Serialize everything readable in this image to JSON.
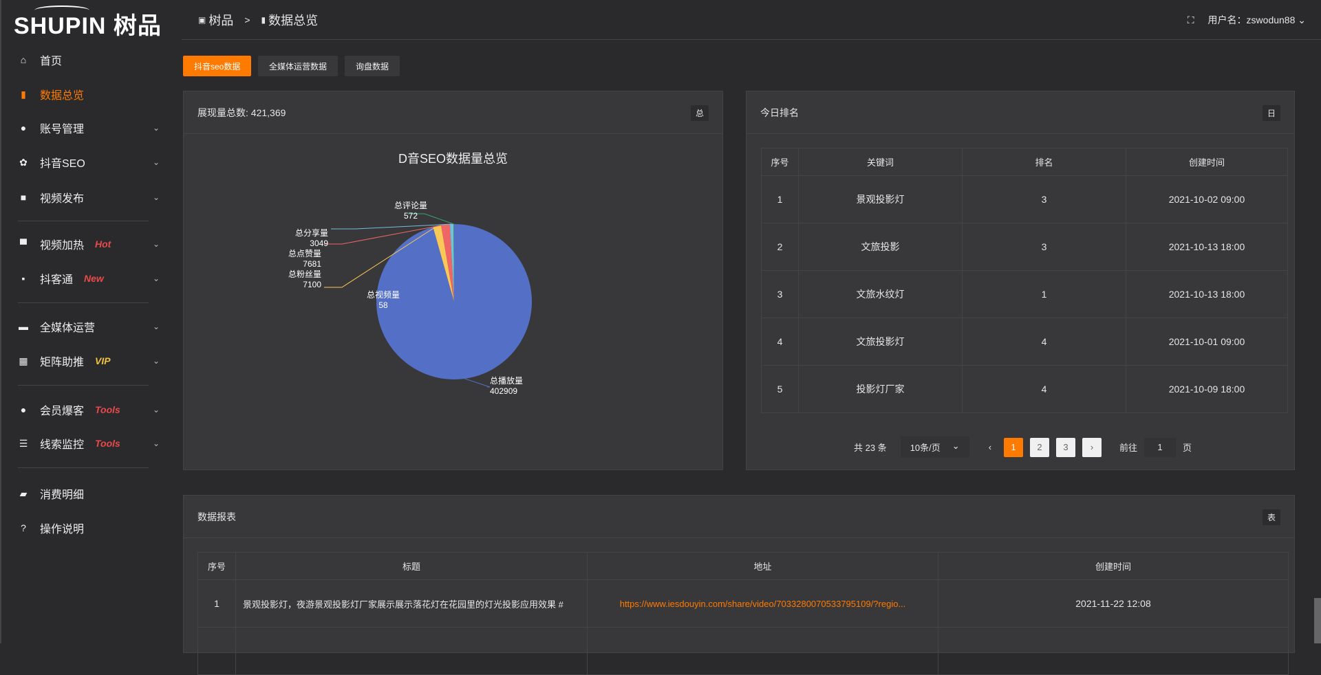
{
  "brand": {
    "logo_text": "SHUPIN 树品"
  },
  "colors": {
    "accent": "#ff7a00",
    "hot": "#e84a4a",
    "vip": "#f0c040"
  },
  "sidebar": {
    "items": [
      {
        "label": "首页",
        "icon": "home-icon",
        "glyph": "⌂"
      },
      {
        "label": "数据总览",
        "icon": "bar-chart-icon",
        "glyph": "▮",
        "active": true
      },
      {
        "label": "账号管理",
        "icon": "user-icon",
        "glyph": "●",
        "chev": true
      },
      {
        "label": "抖音SEO",
        "icon": "gear-icon",
        "glyph": "✿",
        "chev": true
      },
      {
        "label": "视频发布",
        "icon": "camera-icon",
        "glyph": "■",
        "chev": true
      },
      {
        "label": "视频加热",
        "icon": "monitor-icon",
        "glyph": "▀",
        "chev": true,
        "tag": "Hot"
      },
      {
        "label": "抖客通",
        "icon": "chat-icon",
        "glyph": "▪",
        "chev": true,
        "tag": "New"
      },
      {
        "label": "全媒体运营",
        "icon": "desktop-icon",
        "glyph": "▬",
        "chev": true
      },
      {
        "label": "矩阵助推",
        "icon": "grid-icon",
        "glyph": "▦",
        "chev": true,
        "tag": "VIP"
      },
      {
        "label": "会员爆客",
        "icon": "user-icon",
        "glyph": "●",
        "chev": true,
        "tag": "Tools"
      },
      {
        "label": "线索监控",
        "icon": "sliders-icon",
        "glyph": "☰",
        "chev": true,
        "tag": "Tools"
      },
      {
        "label": "消费明细",
        "icon": "wallet-icon",
        "glyph": "▰"
      },
      {
        "label": "操作说明",
        "icon": "help-icon",
        "glyph": "?"
      }
    ]
  },
  "header": {
    "breadcrumb": [
      "树品",
      "数据总览"
    ],
    "sep": ">",
    "user_label": "用户名：zswodun88"
  },
  "tabs": [
    "抖音seo数据",
    "全媒体运营数据",
    "询盘数据"
  ],
  "pie_card": {
    "title": "展现量总数: 421,369",
    "badge": "总"
  },
  "chart_data": {
    "type": "pie",
    "title": "D音SEO数据量总览",
    "slices": [
      {
        "name": "总播放量",
        "value": 402909,
        "color": "#5470c6"
      },
      {
        "name": "总视频量",
        "value": 58,
        "color": "#91cc75"
      },
      {
        "name": "总粉丝量",
        "value": 7100,
        "color": "#fac858"
      },
      {
        "name": "总点赞量",
        "value": 7681,
        "color": "#ee6666"
      },
      {
        "name": "总分享量",
        "value": 3049,
        "color": "#73c0de"
      },
      {
        "name": "总评论量",
        "value": 572,
        "color": "#3ba272"
      }
    ],
    "legend": "bottom"
  },
  "rank_card": {
    "title": "今日排名",
    "badge": "日",
    "columns": [
      "序号",
      "关键词",
      "排名",
      "创建时间"
    ],
    "rows": [
      [
        "1",
        "景观投影灯",
        "3",
        "2021-10-02 09:00"
      ],
      [
        "2",
        "文旅投影",
        "3",
        "2021-10-13 18:00"
      ],
      [
        "3",
        "文旅水纹灯",
        "1",
        "2021-10-13 18:00"
      ],
      [
        "4",
        "文旅投影灯",
        "4",
        "2021-10-01 09:00"
      ],
      [
        "5",
        "投影灯厂家",
        "4",
        "2021-10-09 18:00"
      ]
    ],
    "pager": {
      "total": "共 23 条",
      "page_size": "10条/页",
      "pages": [
        "1",
        "2",
        "3"
      ],
      "current": "1",
      "goto_label": "前往",
      "goto_value": "1",
      "page_unit": "页"
    }
  },
  "report_card": {
    "title": "数据报表",
    "badge": "表",
    "columns": [
      "序号",
      "标题",
      "地址",
      "创建时间"
    ],
    "rows": [
      [
        "1",
        "景观投影灯，夜游景观投影灯厂家展示展示落花灯在花园里的灯光投影应用效果 #",
        "https://www.iesdouyin.com/share/video/7033280070533795109/?regio...",
        "2021-11-22 12:08"
      ]
    ]
  }
}
